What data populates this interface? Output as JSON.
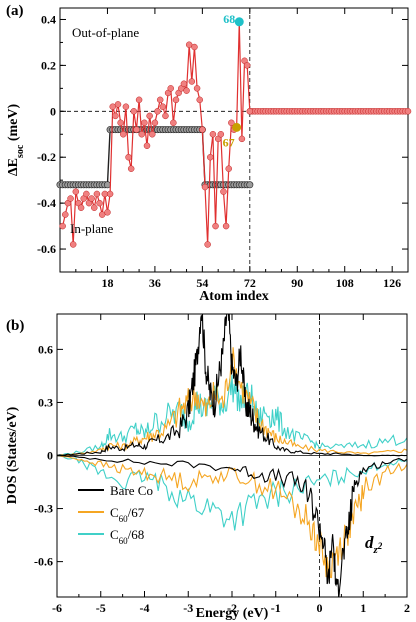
{
  "chart_data": [
    {
      "type": "line",
      "panel_label": "(a)",
      "xlabel": "Atom index",
      "ylabel": "ΔE",
      "ylabel_sub": "soc",
      "ylabel_unit": " (meV)",
      "xlim": [
        0,
        132
      ],
      "ylim": [
        -0.7,
        0.45
      ],
      "xticks": [
        18,
        36,
        54,
        72,
        90,
        108,
        126
      ],
      "yticks": [
        -0.6,
        -0.4,
        -0.2,
        0,
        0.2,
        0.4
      ],
      "ytick_labels": [
        "-0.6",
        "-0.4",
        "-0.2",
        "0",
        "0.2",
        "0.4"
      ],
      "annotations": [
        "Out-of-plane",
        "In-plane"
      ],
      "point_labels": [
        {
          "text": "68",
          "x": 68,
          "y": 0.39,
          "color": "#1fc0c8"
        },
        {
          "text": "67",
          "x": 67,
          "y": -0.07,
          "color": "#c8a000"
        }
      ],
      "series": [
        {
          "color": "#e03030",
          "x": [
            1,
            2,
            3,
            4,
            5,
            6,
            7,
            8,
            9,
            10,
            11,
            12,
            13,
            14,
            15,
            16,
            17,
            18,
            19,
            20,
            21,
            22,
            23,
            24,
            25,
            26,
            27,
            28,
            29,
            30,
            31,
            32,
            33,
            34,
            35,
            36,
            37,
            38,
            39,
            40,
            41,
            42,
            43,
            44,
            45,
            46,
            47,
            48,
            49,
            50,
            51,
            52,
            53,
            54,
            55,
            56,
            57,
            58,
            59,
            60,
            61,
            62,
            63,
            64,
            65,
            66,
            67,
            68,
            69,
            70,
            71,
            72
          ],
          "y": [
            -0.5,
            -0.45,
            -0.4,
            -0.38,
            -0.58,
            -0.35,
            -0.4,
            -0.42,
            -0.38,
            -0.36,
            -0.4,
            -0.38,
            -0.42,
            -0.36,
            -0.4,
            -0.45,
            -0.36,
            -0.44,
            -0.36,
            0.02,
            -0.02,
            0.03,
            -0.05,
            -0.1,
            0.02,
            -0.2,
            -0.25,
            0.0,
            -0.08,
            0.05,
            -0.1,
            -0.05,
            -0.15,
            -0.02,
            -0.1,
            -0.05,
            0.0,
            0.05,
            0.02,
            -0.02,
            0.08,
            0.1,
            -0.05,
            0.05,
            0.08,
            0.1,
            0.12,
            0.09,
            0.29,
            0.13,
            0.28,
            0.1,
            0.05,
            -0.08,
            -0.33,
            -0.58,
            -0.2,
            -0.1,
            -0.5,
            -0.12,
            -0.1,
            -0.35,
            -0.5,
            -0.25,
            -0.05,
            -0.08,
            -0.07,
            0.39,
            -0.12,
            0.22,
            0.2,
            0.0
          ]
        },
        {
          "color": "#555555",
          "x": [
            0,
            1,
            2,
            3,
            4,
            5,
            6,
            7,
            8,
            9,
            10,
            11,
            12,
            13,
            14,
            15,
            16,
            17,
            18,
            19,
            20,
            21,
            22,
            23,
            24,
            25,
            26,
            27,
            28,
            29,
            30,
            31,
            32,
            33,
            34,
            35,
            36,
            37,
            38,
            39,
            40,
            41,
            42,
            43,
            44,
            45,
            46,
            47,
            48,
            49,
            50,
            51,
            52,
            53,
            54,
            55,
            56,
            57,
            58,
            59,
            60,
            61,
            62,
            63,
            64,
            65,
            66,
            67,
            68,
            69,
            70,
            71,
            72
          ],
          "y": [
            -0.32,
            -0.32,
            -0.32,
            -0.32,
            -0.32,
            -0.32,
            -0.32,
            -0.32,
            -0.32,
            -0.32,
            -0.32,
            -0.32,
            -0.32,
            -0.32,
            -0.32,
            -0.32,
            -0.32,
            -0.32,
            -0.32,
            -0.08,
            -0.08,
            -0.08,
            -0.08,
            -0.08,
            -0.08,
            -0.08,
            -0.08,
            -0.08,
            -0.08,
            -0.08,
            -0.08,
            -0.08,
            -0.08,
            -0.08,
            -0.08,
            -0.08,
            -0.08,
            -0.08,
            -0.08,
            -0.08,
            -0.08,
            -0.08,
            -0.08,
            -0.08,
            -0.08,
            -0.08,
            -0.08,
            -0.08,
            -0.08,
            -0.08,
            -0.08,
            -0.08,
            -0.08,
            -0.08,
            -0.08,
            -0.32,
            -0.32,
            -0.32,
            -0.32,
            -0.32,
            -0.32,
            -0.32,
            -0.32,
            -0.32,
            -0.32,
            -0.32,
            -0.32,
            -0.32,
            -0.32,
            -0.32,
            -0.32,
            -0.32,
            -0.32
          ]
        },
        {
          "color": "#e03030",
          "x_start": 72,
          "x_end": 132,
          "y_const": 0
        }
      ]
    },
    {
      "type": "line",
      "panel_label": "(b)",
      "xlabel": "Energy (eV)",
      "ylabel": "DOS (States/eV)",
      "xlim": [
        -6,
        2
      ],
      "ylim": [
        -0.8,
        0.8
      ],
      "xticks": [
        -6,
        -5,
        -4,
        -3,
        -2,
        -1,
        0,
        1,
        2
      ],
      "xtick_labels": [
        "-6",
        "-5",
        "-4",
        "-3",
        "-2",
        "-1",
        "0",
        "1",
        "2"
      ],
      "yticks": [
        -0.6,
        -0.3,
        0,
        0.3,
        0.6
      ],
      "ytick_labels": [
        "-0.6",
        "-0.3",
        "0",
        "0.3",
        "0.6"
      ],
      "orbital_label": "d",
      "orbital_sub": "z",
      "orbital_sup": "2",
      "series": [
        {
          "name": "Bare Co",
          "legend_main": "Bare Co",
          "legend_sub": "",
          "legend_tail": "",
          "color": "#000000",
          "up": {
            "x": [
              -6,
              -5.5,
              -5,
              -4.8,
              -4.5,
              -4.2,
              -4,
              -3.8,
              -3.5,
              -3.2,
              -3,
              -2.9,
              -2.8,
              -2.7,
              -2.6,
              -2.5,
              -2.4,
              -2.3,
              -2.2,
              -2.1,
              -2,
              -1.9,
              -1.8,
              -1.7,
              -1.6,
              -1.5,
              -1.4,
              -1.2,
              -1,
              -0.8,
              -0.5,
              0,
              0.5,
              1,
              1.5,
              2
            ],
            "y": [
              0,
              0.01,
              0.02,
              0.05,
              0.04,
              0.06,
              0.05,
              0.08,
              0.1,
              0.15,
              0.25,
              0.4,
              0.55,
              0.85,
              0.5,
              0.35,
              0.3,
              0.45,
              0.6,
              0.85,
              0.5,
              0.4,
              0.6,
              0.3,
              0.25,
              0.2,
              0.15,
              0.1,
              0.05,
              0.03,
              0.02,
              0.01,
              0.01,
              0,
              0,
              0
            ]
          },
          "down": {
            "x": [
              -6,
              -5,
              -4,
              -3,
              -2,
              -1.5,
              -1,
              -0.5,
              -0.2,
              0,
              0.1,
              0.2,
              0.3,
              0.4,
              0.5,
              0.6,
              0.7,
              0.8,
              1,
              1.5,
              2
            ],
            "y": [
              0,
              -0.02,
              -0.04,
              -0.05,
              -0.07,
              -0.1,
              -0.12,
              -0.15,
              -0.25,
              -0.4,
              -0.5,
              -0.72,
              -0.45,
              -0.8,
              -0.6,
              -0.5,
              -0.35,
              -0.15,
              -0.08,
              -0.04,
              -0.02
            ]
          }
        },
        {
          "name": "C60/67",
          "legend_main": "C",
          "legend_sub": "60",
          "legend_tail": "/67",
          "color": "#f5a623",
          "up": {
            "x": [
              -6,
              -5.5,
              -5,
              -4.8,
              -4.5,
              -4.2,
              -4,
              -3.8,
              -3.5,
              -3.2,
              -3,
              -2.8,
              -2.6,
              -2.4,
              -2.2,
              -2,
              -1.8,
              -1.6,
              -1.4,
              -1.2,
              -1,
              -0.8,
              -0.5,
              0,
              0.5,
              1,
              1.5,
              2
            ],
            "y": [
              0,
              0.01,
              0.03,
              0.06,
              0.05,
              0.08,
              0.1,
              0.12,
              0.15,
              0.25,
              0.3,
              0.35,
              0.25,
              0.35,
              0.3,
              0.55,
              0.4,
              0.3,
              0.2,
              0.15,
              0.1,
              0.08,
              0.05,
              0.03,
              0.02,
              0.01,
              0.02,
              0.03
            ]
          },
          "down": {
            "x": [
              -6,
              -5.5,
              -5,
              -4.5,
              -4,
              -3.5,
              -3,
              -2.5,
              -2,
              -1.5,
              -1,
              -0.5,
              -0.2,
              0,
              0.2,
              0.4,
              0.6,
              0.8,
              1,
              1.5,
              2
            ],
            "y": [
              0,
              -0.02,
              -0.05,
              -0.08,
              -0.1,
              -0.12,
              -0.15,
              -0.12,
              -0.1,
              -0.15,
              -0.2,
              -0.3,
              -0.4,
              -0.5,
              -0.65,
              -0.55,
              -0.45,
              -0.35,
              -0.2,
              -0.1,
              -0.05
            ]
          }
        },
        {
          "name": "C60/68",
          "legend_main": "C",
          "legend_sub": "60",
          "legend_tail": "/68",
          "color": "#40d0c8",
          "up": {
            "x": [
              -6,
              -5.5,
              -5,
              -4.8,
              -4.5,
              -4.2,
              -4,
              -3.8,
              -3.5,
              -3.2,
              -3,
              -2.8,
              -2.6,
              -2.4,
              -2.2,
              -2,
              -1.8,
              -1.6,
              -1.4,
              -1.2,
              -1,
              -0.8,
              -0.5,
              -0.2,
              0,
              0.5,
              1,
              1.5,
              2
            ],
            "y": [
              0,
              0.02,
              0.05,
              0.12,
              0.1,
              0.15,
              0.12,
              0.18,
              0.22,
              0.25,
              0.2,
              0.3,
              0.25,
              0.35,
              0.28,
              0.4,
              0.3,
              0.35,
              0.2,
              0.25,
              0.22,
              0.15,
              0.1,
              0.08,
              0.05,
              0.05,
              0.06,
              0.08,
              0.1
            ]
          },
          "down": {
            "x": [
              -6,
              -5.5,
              -5,
              -4.5,
              -4,
              -3.5,
              -3,
              -2.5,
              -2,
              -1.5,
              -1,
              -0.5,
              0,
              0.5,
              1,
              1.5,
              2
            ],
            "y": [
              0,
              -0.03,
              -0.1,
              -0.15,
              -0.12,
              -0.18,
              -0.25,
              -0.3,
              -0.35,
              -0.28,
              -0.22,
              -0.18,
              -0.15,
              -0.12,
              -0.08,
              -0.05,
              -0.03
            ]
          }
        }
      ]
    }
  ]
}
